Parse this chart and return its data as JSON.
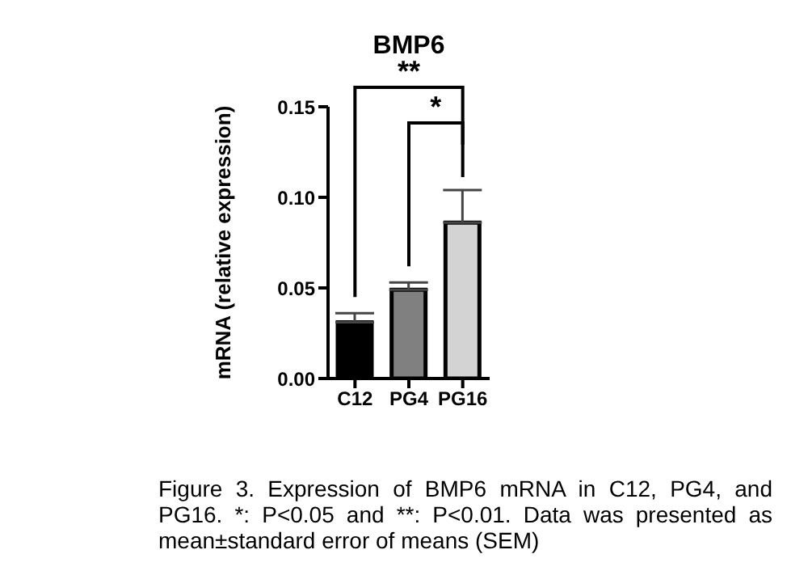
{
  "chart_data": {
    "type": "bar",
    "title": "BMP6",
    "ylabel": "mRNA (relative expression)",
    "categories": [
      "C12",
      "PG4",
      "PG16"
    ],
    "values": [
      0.031,
      0.049,
      0.086
    ],
    "colors": [
      "#000000",
      "#808080",
      "#d3d3d3"
    ],
    "errors": [
      [
        0.031,
        0.036
      ],
      [
        0.049,
        0.053
      ],
      [
        0.086,
        0.104
      ]
    ],
    "ylim": [
      0,
      0.15
    ],
    "yticks": [
      {
        "value": 0,
        "label": "0.00"
      },
      {
        "value": 0.05,
        "label": "0.05"
      },
      {
        "value": 0.1,
        "label": "0.10"
      },
      {
        "value": 0.15,
        "label": "0.15"
      }
    ],
    "grid": false,
    "annotations": [
      "**",
      "*",
      "Figure 3. Expression of BMP6 mRNA in C12, PG4, and PG16. *: P<0.05 and **: P<0.01. Data was presented as mean±standard error of means (SEM)"
    ]
  }
}
